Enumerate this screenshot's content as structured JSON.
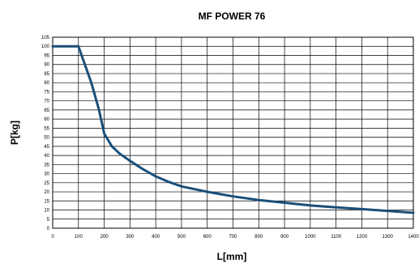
{
  "chart_data": {
    "type": "line",
    "title": "MF POWER 76",
    "xlabel": "L[mm]",
    "ylabel": "P[kg]",
    "xlim": [
      0,
      1400
    ],
    "ylim": [
      0,
      105
    ],
    "x_ticks": [
      0,
      100,
      200,
      300,
      400,
      500,
      600,
      700,
      800,
      900,
      1000,
      1100,
      1200,
      1300,
      1400
    ],
    "y_ticks": [
      0,
      5,
      10,
      15,
      20,
      25,
      30,
      35,
      40,
      45,
      50,
      55,
      60,
      65,
      70,
      75,
      80,
      85,
      90,
      95,
      100,
      105
    ],
    "grid": true,
    "series": [
      {
        "color": "#1a4f7a",
        "x": [
          0,
          100,
          150,
          180,
          200,
          230,
          260,
          300,
          350,
          400,
          450,
          500,
          600,
          700,
          800,
          900,
          1000,
          1100,
          1200,
          1300,
          1400
        ],
        "y": [
          100,
          100,
          80,
          65,
          52,
          45,
          41,
          37,
          32.5,
          28.5,
          25.5,
          23,
          20,
          17.5,
          15.5,
          14,
          12.5,
          11.5,
          10.5,
          9.5,
          8.5
        ]
      }
    ]
  }
}
